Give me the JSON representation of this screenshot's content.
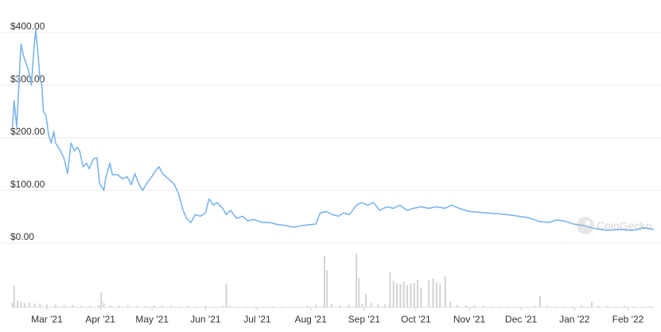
{
  "chart_data": {
    "type": "line",
    "color": "#7cb5ec",
    "grid": true,
    "watermark": "CoinGecko",
    "xlim": [
      0,
      372
    ],
    "xticks": [
      {
        "value": 20,
        "label": "Mar '21"
      },
      {
        "value": 51,
        "label": "Apr '21"
      },
      {
        "value": 81,
        "label": "May '21"
      },
      {
        "value": 112,
        "label": "Jun '21"
      },
      {
        "value": 142,
        "label": "Jul '21"
      },
      {
        "value": 173,
        "label": "Aug '21"
      },
      {
        "value": 204,
        "label": "Sep '21"
      },
      {
        "value": 234,
        "label": "Oct '21"
      },
      {
        "value": 265,
        "label": "Nov '21"
      },
      {
        "value": 295,
        "label": "Dec '21"
      },
      {
        "value": 326,
        "label": "Jan '22"
      },
      {
        "value": 357,
        "label": "Feb '22"
      }
    ],
    "ylim": [
      0,
      400
    ],
    "yticks": [
      {
        "value": 0,
        "label": "$0.00"
      },
      {
        "value": 100,
        "label": "$100.00"
      },
      {
        "value": 200,
        "label": "$200.00"
      },
      {
        "value": 300,
        "label": "$300.00"
      },
      {
        "value": 400,
        "label": "$400.00"
      }
    ],
    "x": [
      0,
      1,
      2.5,
      5,
      6.5,
      9,
      10.5,
      11,
      12.5,
      13.5,
      15,
      16,
      17,
      18,
      19.5,
      21,
      22.5,
      24,
      25,
      28,
      30,
      32,
      34,
      36,
      37.5,
      39,
      41,
      43,
      44.5,
      47,
      49,
      50.5,
      53,
      54,
      56.5,
      58,
      61,
      64,
      66.5,
      69,
      71,
      73.5,
      75.5,
      78,
      80,
      83,
      85,
      87,
      90.5,
      94,
      96.5,
      99,
      101,
      103.5,
      106,
      109,
      112,
      114,
      116.5,
      118.5,
      122,
      124,
      126.5,
      130,
      133.5,
      136.5,
      140,
      145,
      149.5,
      154,
      159,
      163,
      168,
      172.5,
      176,
      178.5,
      182,
      185.5,
      189,
      192,
      195.5,
      199.5,
      202.5,
      206,
      209.5,
      213,
      217,
      221,
      224.5,
      229,
      232.5,
      237,
      241.5,
      246,
      251,
      254.5,
      259,
      265,
      269.5,
      275,
      281,
      287,
      293.5,
      299.5,
      305.5,
      311,
      315.5,
      320,
      325.5,
      331.5,
      338.5,
      345.5,
      352.5,
      359.5,
      366.5,
      372
    ],
    "values": [
      220,
      270,
      220,
      378,
      355,
      332,
      310,
      300,
      370,
      405,
      355,
      310,
      302,
      250,
      242,
      205,
      190,
      212,
      190,
      175,
      160,
      132,
      190,
      175,
      182,
      175,
      145,
      152,
      141,
      160,
      162,
      114,
      100,
      122,
      152,
      130,
      130,
      122,
      126,
      111,
      132,
      111,
      100,
      114,
      122,
      137,
      145,
      132,
      122,
      111,
      92,
      62,
      47,
      39,
      54,
      51,
      57,
      84,
      72,
      77,
      66,
      54,
      62,
      47,
      51,
      42,
      45,
      39,
      39,
      35,
      33,
      30,
      33,
      35,
      36,
      57,
      60,
      54,
      51,
      57,
      54,
      72,
      77,
      72,
      77,
      62,
      69,
      66,
      72,
      62,
      66,
      69,
      66,
      69,
      66,
      72,
      66,
      60,
      59,
      57,
      56,
      54,
      51,
      48,
      41,
      39,
      44,
      42,
      36,
      33,
      27,
      24,
      26,
      24,
      29,
      26
    ],
    "volume": {
      "color": "#d3d3d3",
      "ylim": [
        0,
        100
      ],
      "x": [
        0,
        1,
        3,
        5,
        7,
        10,
        13,
        16,
        20,
        25,
        30,
        35,
        40,
        45,
        50,
        51.5,
        53,
        57,
        62,
        67,
        72,
        77,
        82,
        87,
        92,
        97,
        102,
        107,
        112,
        117,
        122,
        124,
        126,
        131,
        136,
        141,
        146,
        151,
        156,
        161,
        166,
        171,
        176,
        181,
        182.5,
        185,
        190,
        195,
        199.5,
        201,
        203,
        205,
        208,
        212,
        216,
        219,
        221,
        223,
        225,
        227,
        229,
        231,
        233,
        235,
        237,
        241.5,
        244,
        246,
        248,
        251,
        254,
        258,
        263,
        268,
        273,
        278,
        283,
        288,
        293,
        298,
        303,
        306,
        310,
        315,
        320,
        325,
        330,
        336,
        340,
        345,
        350,
        355,
        360,
        365,
        370
      ],
      "values": [
        8,
        39,
        12,
        10,
        8,
        9,
        7,
        6,
        5,
        5,
        4,
        4,
        3,
        3,
        4,
        27,
        8,
        4,
        3,
        4,
        3,
        3,
        4,
        3,
        3,
        2,
        3,
        2,
        3,
        2,
        3,
        43,
        4,
        2,
        2,
        2,
        2,
        2,
        2,
        2,
        2,
        3,
        5,
        93,
        67,
        6,
        4,
        5,
        96,
        53,
        6,
        24,
        8,
        6,
        5,
        64,
        48,
        44,
        42,
        46,
        40,
        43,
        44,
        50,
        36,
        50,
        52,
        45,
        42,
        57,
        10,
        5,
        4,
        3,
        3,
        2,
        2,
        2,
        2,
        2,
        3,
        21,
        3,
        2,
        2,
        2,
        3,
        10,
        3,
        3,
        2,
        3,
        2,
        2,
        2
      ]
    }
  }
}
